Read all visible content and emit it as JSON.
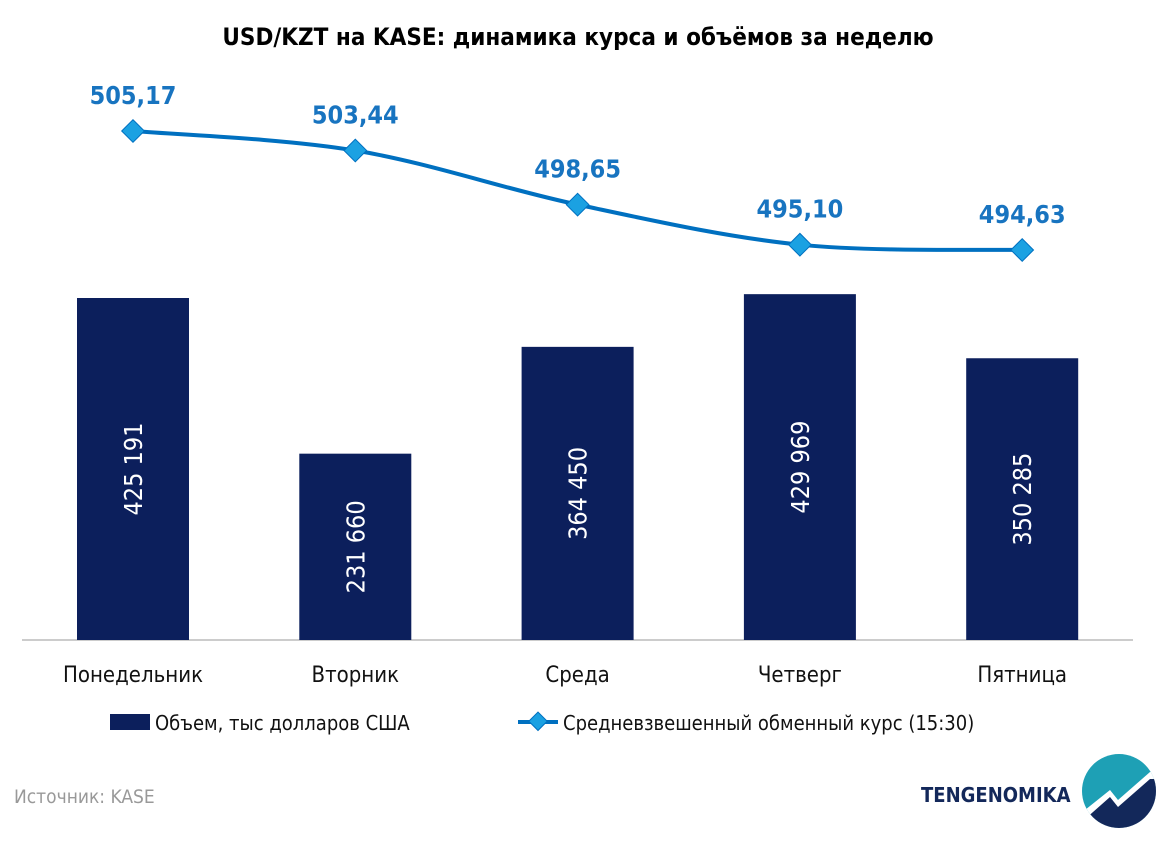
{
  "chart_data": {
    "type": "bar+line",
    "title": "USD/KZT на KASE: динамика курса и объёмов за неделю",
    "categories": [
      "Понедельник",
      "Вторник",
      "Среда",
      "Четверг",
      "Пятница"
    ],
    "series": [
      {
        "name": "Объем, тыс долларов США",
        "type": "bar",
        "values": [
          425191,
          231660,
          364450,
          429969,
          350285
        ],
        "labels": [
          "425 191",
          "231 660",
          "364 450",
          "429 969",
          "350 285"
        ],
        "color": "#0c1f5c"
      },
      {
        "name": "Средневзвешенный обменный курс (15:30)",
        "type": "line",
        "values": [
          505.17,
          503.44,
          498.65,
          495.1,
          494.63
        ],
        "labels": [
          "505,17",
          "503,44",
          "498,65",
          "495,10",
          "494,63"
        ],
        "color": "#0070c0",
        "marker_color": "#1ba1e2"
      }
    ],
    "legend": "bottom",
    "grid": false
  },
  "footer": {
    "source": "Источник: KASE",
    "brand": "TENGENOMIKA"
  }
}
